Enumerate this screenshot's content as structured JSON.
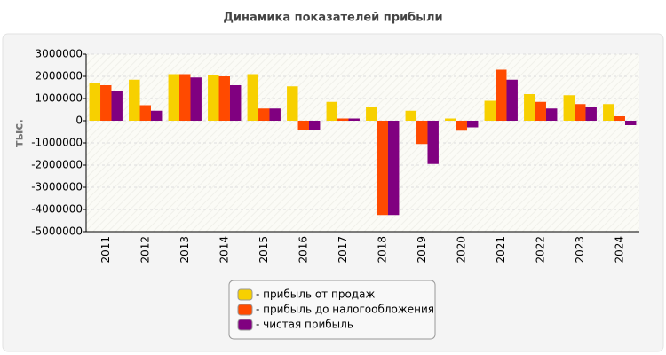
{
  "chart_data": {
    "type": "bar",
    "title": "Динамика показателей прибыли",
    "y_label": "тыс.",
    "categories": [
      "2011",
      "2012",
      "2013",
      "2014",
      "2015",
      "2016",
      "2017",
      "2018",
      "2019",
      "2020",
      "2021",
      "2022",
      "2023",
      "2024"
    ],
    "series": [
      {
        "name": "- прибыль от продаж",
        "color": "#f7d000",
        "values": [
          1700000,
          1850000,
          2100000,
          2050000,
          2100000,
          1550000,
          850000,
          600000,
          450000,
          100000,
          900000,
          1200000,
          1150000,
          750000
        ]
      },
      {
        "name": "- прибыль до налогообложения",
        "color": "#ff4a00",
        "values": [
          1600000,
          700000,
          2100000,
          2000000,
          550000,
          -400000,
          100000,
          -4250000,
          -1050000,
          -450000,
          2300000,
          850000,
          750000,
          200000
        ]
      },
      {
        "name": "- чистая прибыль",
        "color": "#800080",
        "values": [
          1350000,
          450000,
          1950000,
          1600000,
          550000,
          -400000,
          100000,
          -4250000,
          -1950000,
          -300000,
          1850000,
          550000,
          600000,
          -200000
        ]
      }
    ],
    "ylim": [
      -5000000,
      3000000
    ],
    "yticks": [
      3000000,
      2000000,
      1000000,
      0,
      -1000000,
      -2000000,
      -3000000,
      -4000000,
      -5000000
    ],
    "grid": true
  }
}
